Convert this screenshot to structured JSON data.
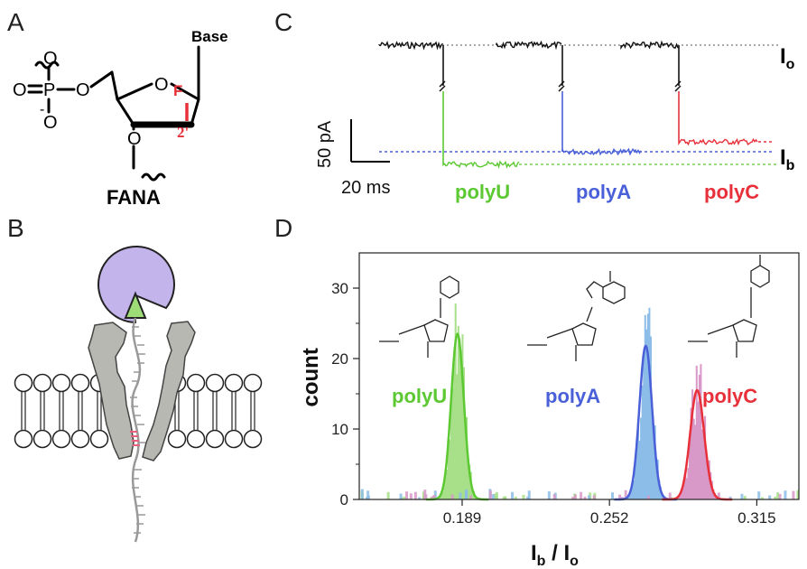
{
  "panels": {
    "a": "A",
    "b": "B",
    "c": "C",
    "d": "D"
  },
  "panel_a": {
    "base": "Base",
    "fluoro": "F",
    "two_prime": "2'",
    "oxygen": "O",
    "phosphorus": "P",
    "minus": "-",
    "name": "FANA"
  },
  "panel_c": {
    "i0_label": "I",
    "i0_sub": "o",
    "ib_label": "I",
    "ib_sub": "b",
    "scale_y": "50 pA",
    "scale_x": "20 ms",
    "traces": [
      {
        "name": "polyU",
        "color": "#5cc832"
      },
      {
        "name": "polyA",
        "color": "#4a60d8"
      },
      {
        "name": "polyC",
        "color": "#e8303a"
      }
    ],
    "open_color": "#111111"
  },
  "chart_data": {
    "type": "histogram",
    "xlabel_main": "I",
    "xlabel_sub1": "b",
    "xlabel_sep": " / I",
    "xlabel_sub2": "o",
    "ylabel": "count",
    "xlim": [
      0.145,
      0.333
    ],
    "ylim": [
      0,
      35
    ],
    "xticks": [
      "0.189",
      "0.252",
      "0.315"
    ],
    "xtick_values": [
      0.189,
      0.252,
      0.315
    ],
    "yticks": [
      "0",
      "10",
      "20",
      "30"
    ],
    "ytick_values": [
      0,
      10,
      20,
      30
    ],
    "series": [
      {
        "name": "polyU",
        "color": "#5cc832",
        "fill": "#a8e08a",
        "mean": 0.187,
        "sigma": 0.0027,
        "peak": 23.5
      },
      {
        "name": "polyA",
        "color": "#4a60d8",
        "fill": "#8cbce8",
        "mean": 0.2675,
        "sigma": 0.0027,
        "peak": 21.8
      },
      {
        "name": "polyC",
        "color": "#e8303a",
        "fill": "#d898c8",
        "mean": 0.2895,
        "sigma": 0.003,
        "peak": 15.5
      }
    ]
  }
}
